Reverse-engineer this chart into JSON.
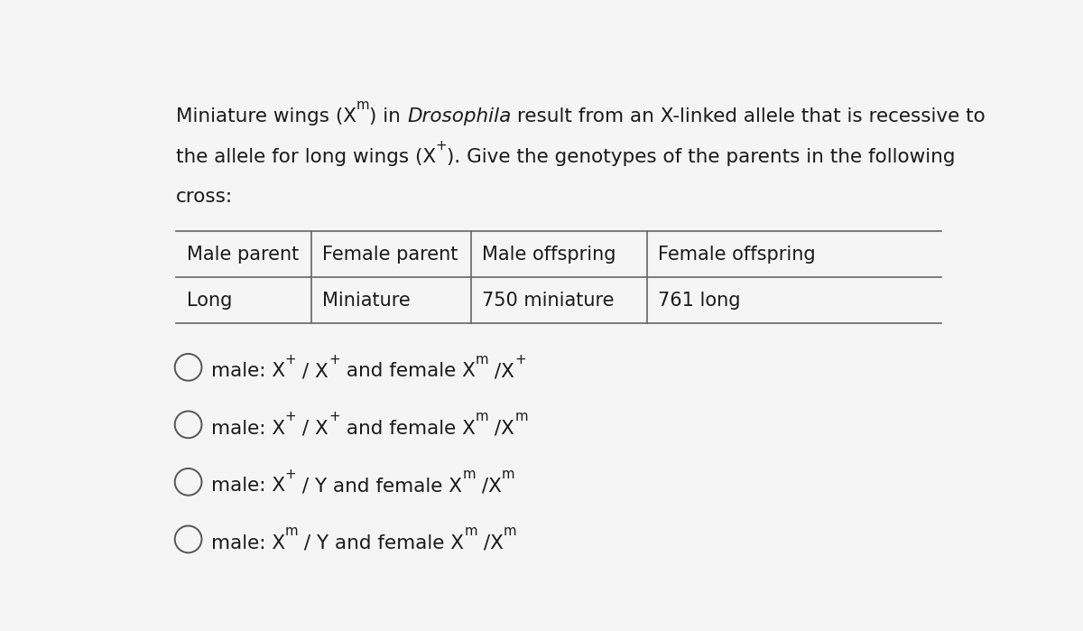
{
  "background_color": "#f5f5f5",
  "text_color": "#1a1a1a",
  "table_border_color": "#666666",
  "circle_color": "#555555",
  "fig_width": 12.0,
  "fig_height": 6.99,
  "font_size_intro": 15.5,
  "font_size_table": 15.0,
  "font_size_options": 15.5,
  "table_headers": [
    "Male parent",
    "Female parent",
    "Male offspring",
    "Female offspring"
  ],
  "table_row": [
    "Long",
    "Miniature",
    "750 miniature",
    "761 long"
  ],
  "intro_line1_parts": [
    {
      "text": "Miniature wings (X",
      "style": "normal"
    },
    {
      "text": "m",
      "style": "super"
    },
    {
      "text": ") in ",
      "style": "normal"
    },
    {
      "text": "Drosophila",
      "style": "italic"
    },
    {
      "text": " result from an X-linked allele that is recessive to",
      "style": "normal"
    }
  ],
  "intro_line2_parts": [
    {
      "text": "the allele for long wings (X",
      "style": "normal"
    },
    {
      "text": "+",
      "style": "super"
    },
    {
      "text": "). Give the genotypes of the parents in the following",
      "style": "normal"
    }
  ],
  "intro_line3": "cross:",
  "options": [
    [
      {
        "text": "male: X",
        "style": "normal"
      },
      {
        "text": "+",
        "style": "super"
      },
      {
        "text": " / X",
        "style": "normal"
      },
      {
        "text": "+",
        "style": "super"
      },
      {
        "text": " and female X",
        "style": "normal"
      },
      {
        "text": "m",
        "style": "super"
      },
      {
        "text": " /X",
        "style": "normal"
      },
      {
        "text": "+",
        "style": "super"
      }
    ],
    [
      {
        "text": "male: X",
        "style": "normal"
      },
      {
        "text": "+",
        "style": "super"
      },
      {
        "text": " / X",
        "style": "normal"
      },
      {
        "text": "+",
        "style": "super"
      },
      {
        "text": " and female X",
        "style": "normal"
      },
      {
        "text": "m",
        "style": "super"
      },
      {
        "text": " /X",
        "style": "normal"
      },
      {
        "text": "m",
        "style": "super"
      }
    ],
    [
      {
        "text": "male: X",
        "style": "normal"
      },
      {
        "text": "+",
        "style": "super"
      },
      {
        "text": " / Y and female X",
        "style": "normal"
      },
      {
        "text": "m",
        "style": "super"
      },
      {
        "text": " /X",
        "style": "normal"
      },
      {
        "text": "m",
        "style": "super"
      }
    ],
    [
      {
        "text": "male: X",
        "style": "normal"
      },
      {
        "text": "m",
        "style": "super"
      },
      {
        "text": " / Y and female X",
        "style": "normal"
      },
      {
        "text": "m",
        "style": "super"
      },
      {
        "text": " /X",
        "style": "normal"
      },
      {
        "text": "m",
        "style": "super"
      }
    ]
  ]
}
